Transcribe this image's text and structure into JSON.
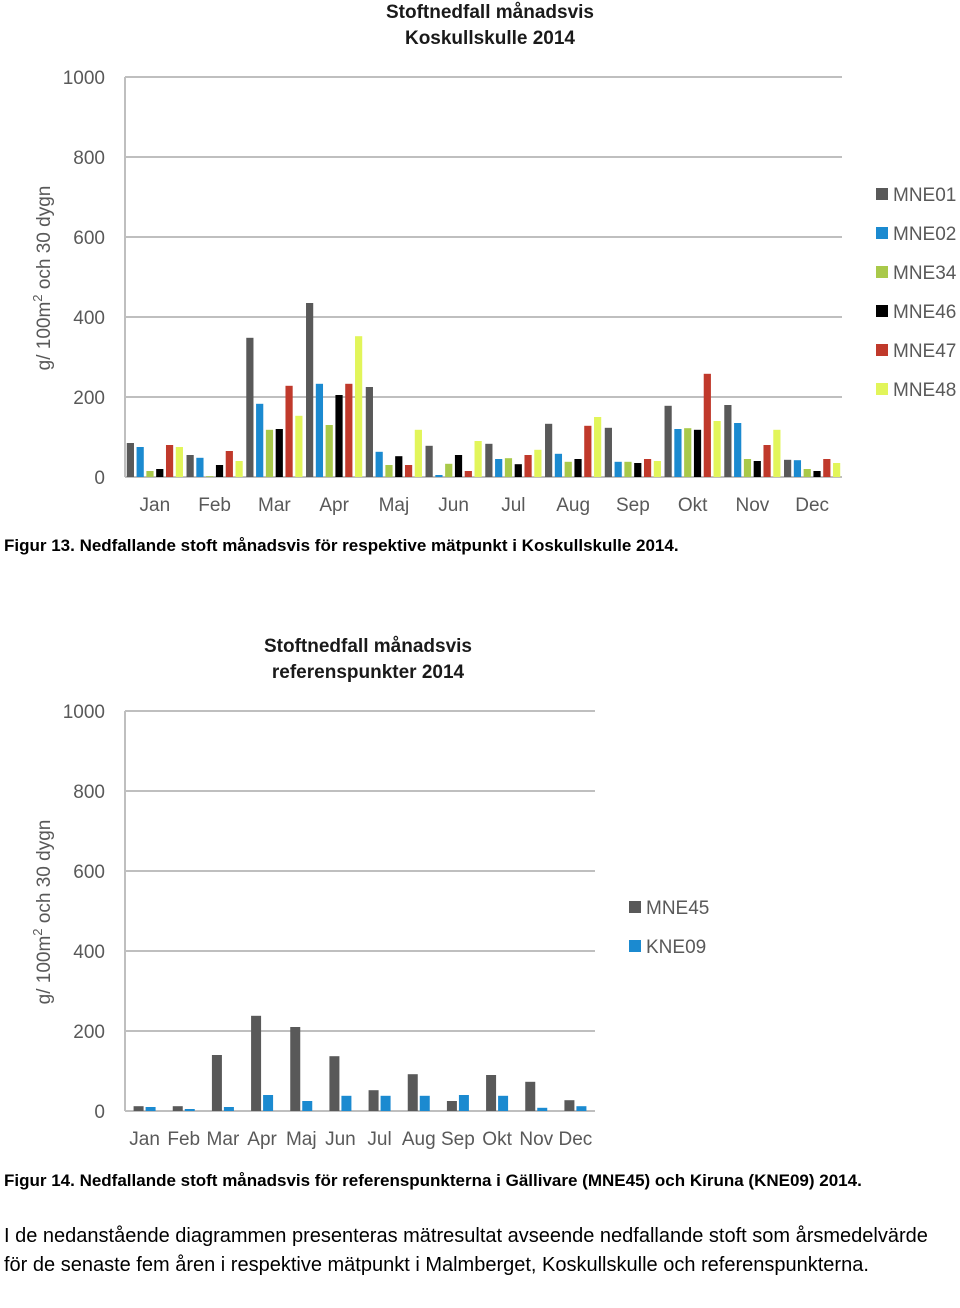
{
  "colors": {
    "MNE01": "#595959",
    "MNE02": "#1b8ad0",
    "MNE34": "#a9c94a",
    "MNE46": "#000000",
    "MNE47": "#c0392b",
    "MNE48": "#e2f55a",
    "MNE45": "#595959",
    "KNE09": "#1b8ad0",
    "grid": "#bfbfbf"
  },
  "chart_data": [
    {
      "type": "bar",
      "title": "Stoftnedfall månadsvis Koskullskulle 2014",
      "title_lines": [
        "Stoftnedfall månadsvis",
        "Koskullskulle 2014"
      ],
      "ylabel": "g/ 100m² och 30 dygn",
      "ylabel_main": "g/ 100m",
      "ylabel_sup": "2",
      "ylabel_rest": " och 30 dygn",
      "xlabel": "",
      "ylim": [
        0,
        1000
      ],
      "yticks": [
        "0",
        "200",
        "400",
        "600",
        "800",
        "1000"
      ],
      "grid": true,
      "legend_position": "right",
      "categories": [
        "Jan",
        "Feb",
        "Mar",
        "Apr",
        "Maj",
        "Jun",
        "Jul",
        "Aug",
        "Sep",
        "Okt",
        "Nov",
        "Dec"
      ],
      "series": [
        {
          "name": "MNE01",
          "values": [
            85,
            55,
            348,
            435,
            225,
            78,
            83,
            133,
            123,
            178,
            180,
            43
          ]
        },
        {
          "name": "MNE02",
          "values": [
            75,
            48,
            183,
            233,
            63,
            5,
            45,
            58,
            38,
            120,
            135,
            42
          ]
        },
        {
          "name": "MNE34",
          "values": [
            15,
            2,
            118,
            130,
            30,
            33,
            47,
            38,
            38,
            122,
            45,
            20
          ]
        },
        {
          "name": "MNE46",
          "values": [
            20,
            30,
            120,
            205,
            52,
            55,
            32,
            45,
            35,
            118,
            40,
            15
          ]
        },
        {
          "name": "MNE47",
          "values": [
            80,
            65,
            228,
            233,
            30,
            15,
            55,
            128,
            45,
            258,
            80,
            45
          ]
        },
        {
          "name": "MNE48",
          "values": [
            75,
            40,
            153,
            352,
            118,
            90,
            68,
            150,
            40,
            140,
            118,
            35
          ]
        }
      ]
    },
    {
      "type": "bar",
      "title": "Stoftnedfall månadsvis referenspunkter 2014",
      "title_lines": [
        "Stoftnedfall månadsvis",
        "referenspunkter 2014"
      ],
      "ylabel": "g/ 100m² och 30 dygn",
      "ylabel_main": "g/ 100m",
      "ylabel_sup": "2",
      "ylabel_rest": " och 30 dygn",
      "xlabel": "",
      "ylim": [
        0,
        1000
      ],
      "yticks": [
        "0",
        "200",
        "400",
        "600",
        "800",
        "1000"
      ],
      "grid": true,
      "legend_position": "right",
      "categories": [
        "Jan",
        "Feb",
        "Mar",
        "Apr",
        "Maj",
        "Jun",
        "Jul",
        "Aug",
        "Sep",
        "Okt",
        "Nov",
        "Dec"
      ],
      "series": [
        {
          "name": "MNE45",
          "values": [
            12,
            12,
            140,
            238,
            210,
            137,
            52,
            92,
            25,
            90,
            73,
            27
          ]
        },
        {
          "name": "KNE09",
          "values": [
            10,
            5,
            10,
            40,
            25,
            38,
            38,
            38,
            40,
            38,
            8,
            12
          ]
        }
      ]
    }
  ],
  "captions": {
    "fig13": "Figur 13. Nedfallande stoft månadsvis för respektive mätpunkt i Koskullskulle 2014.",
    "fig14": "Figur 14. Nedfallande stoft månadsvis för referenspunkterna i Gällivare (MNE45) och Kiruna (KNE09) 2014."
  },
  "paragraph": "I de nedanstående diagrammen presenteras mätresultat avseende nedfallande stoft som årsmedelvärde för de senaste fem åren i respektive mätpunkt i Malmberget, Koskullskulle och referenspunkterna."
}
